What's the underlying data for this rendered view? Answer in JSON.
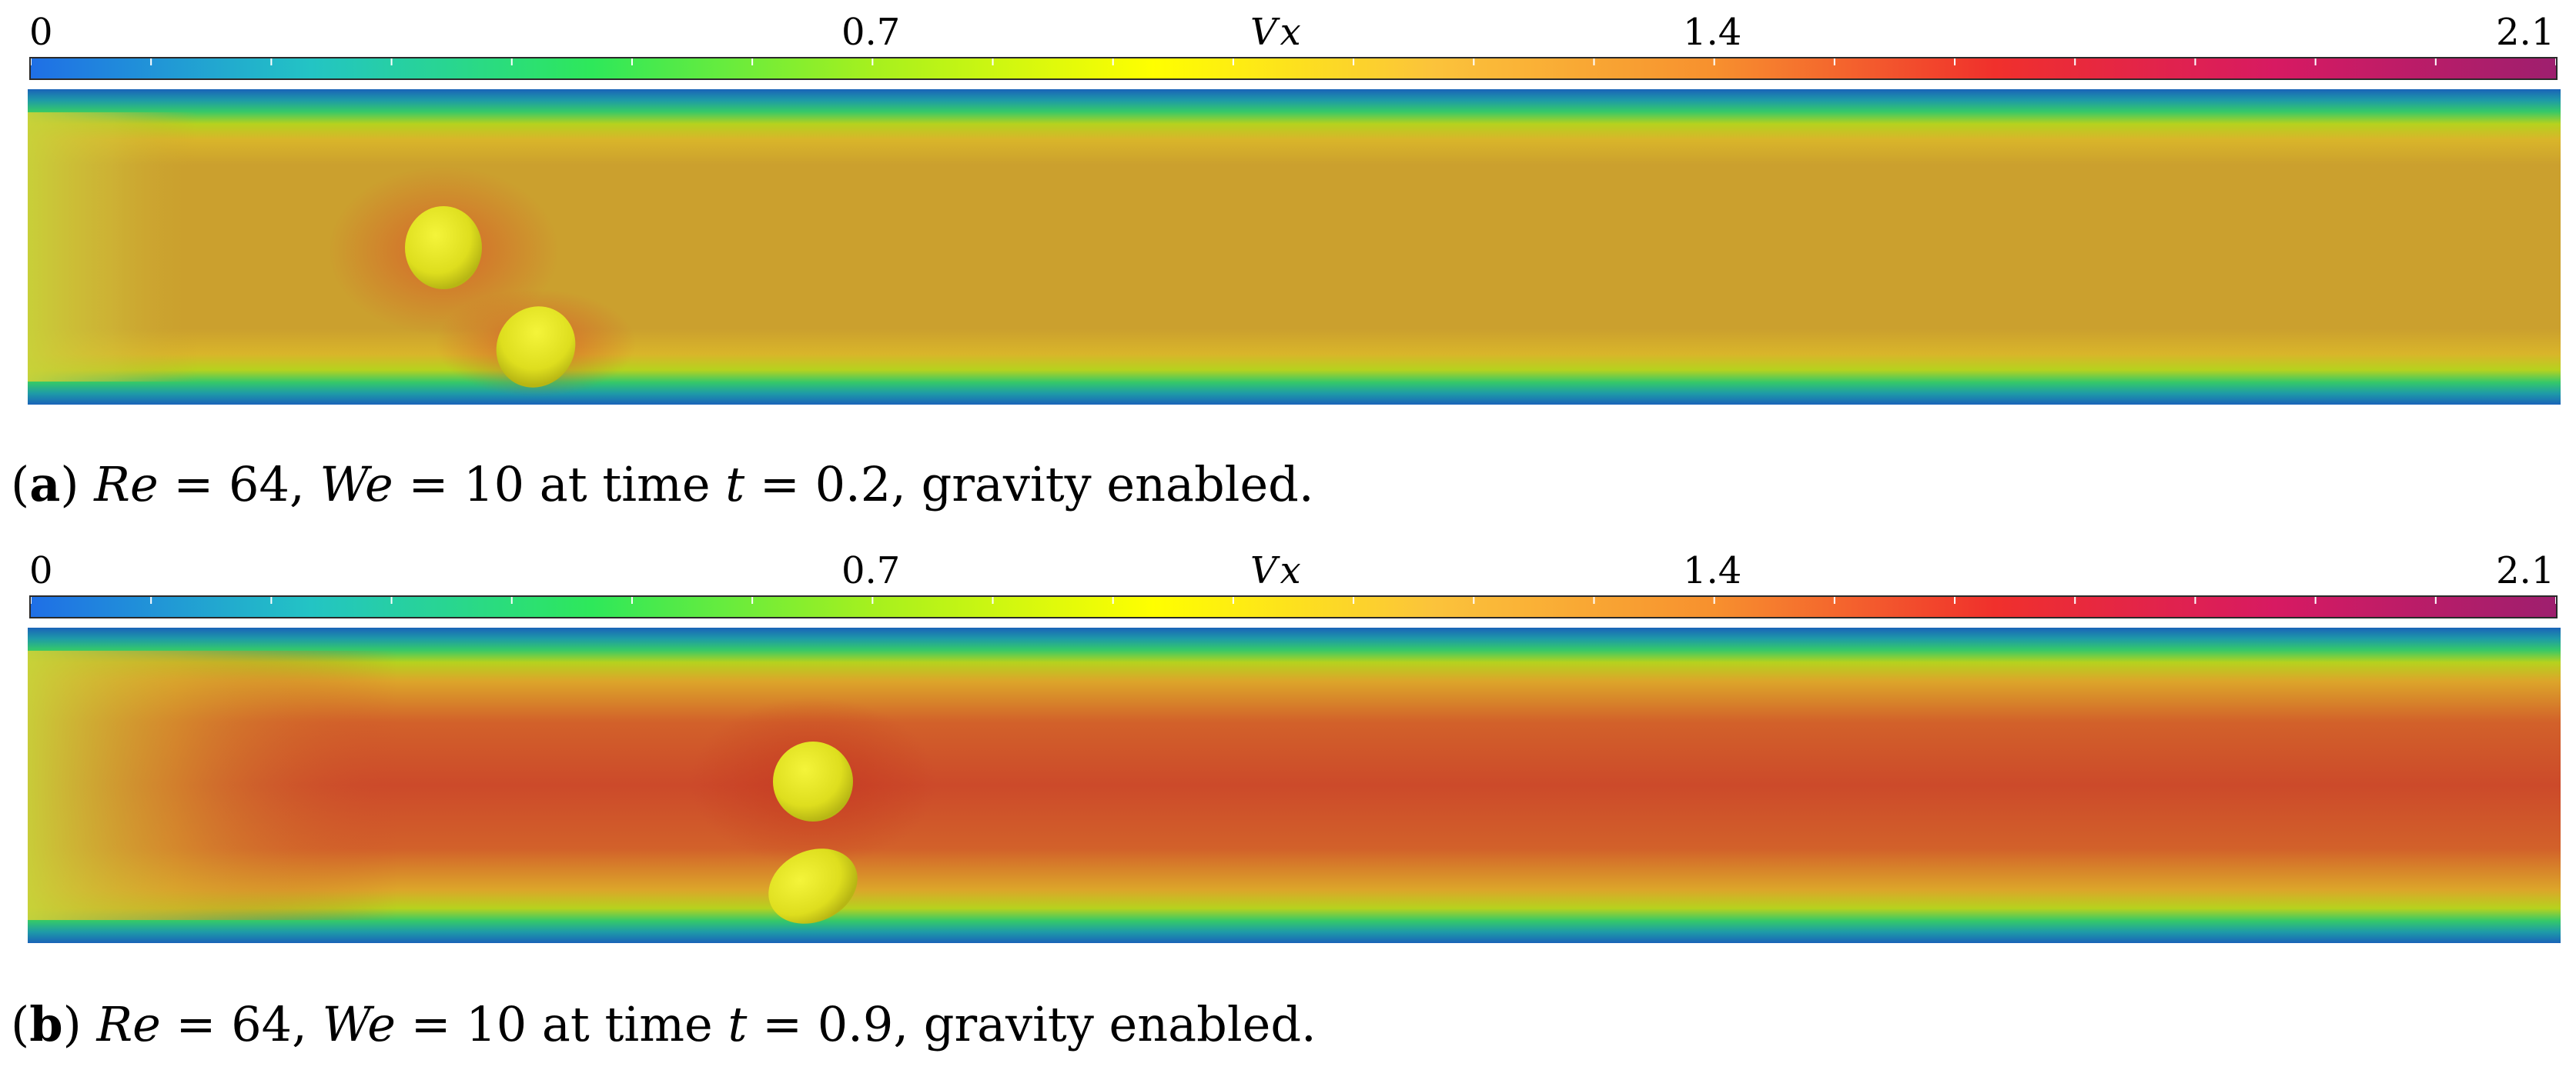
{
  "colorbar": {
    "variable": "Vx",
    "tick_labels": [
      "0",
      "0.7",
      "1.4",
      "2.1"
    ],
    "range": [
      0,
      2.1
    ],
    "colormap": [
      "#1f6fe6",
      "#23c4c4",
      "#2ee85a",
      "#a6f01e",
      "#ffff00",
      "#fbc33b",
      "#f7902e",
      "#f0302c",
      "#d71a62",
      "#9e1f6e"
    ]
  },
  "panels": [
    {
      "id": "a",
      "caption": {
        "label": "a",
        "re_symbol": "Re",
        "re_value": "64",
        "we_symbol": "We",
        "we_value": "10",
        "time_symbol": "t",
        "time_value": "0.2",
        "text_at_time": " at time ",
        "suffix": ", gravity enabled."
      },
      "core_color": "#c9a12e",
      "core_color_peak": "#d6632a",
      "bubble_color": "#e3e320"
    },
    {
      "id": "b",
      "caption": {
        "label": "b",
        "re_symbol": "Re",
        "re_value": "64",
        "we_symbol": "We",
        "we_value": "10",
        "time_symbol": "t",
        "time_value": "0.9",
        "text_at_time": " at time ",
        "suffix": ", gravity enabled."
      },
      "core_color": "#cc4a2a",
      "core_color_peak": "#c93a26",
      "bubble_color": "#e3e320"
    }
  ]
}
